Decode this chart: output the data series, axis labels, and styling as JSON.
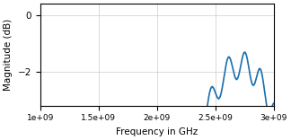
{
  "freq_start": 1000000000.0,
  "freq_end": 3000000000.0,
  "num_points": 500,
  "ylim": [
    -3.2,
    0.4
  ],
  "yticks": [
    0,
    -2
  ],
  "ylabel": "Magnitude (dB)",
  "xlabel": "Frequency in GHz",
  "line_color": "#1a6faf",
  "fill_color": "#6aaed6",
  "fill_alpha": 0.35,
  "background_color": "#ffffff",
  "grid_color": "#cccccc",
  "xticks": [
    1000000000.0,
    1500000000.0,
    2000000000.0,
    2500000000.0,
    3000000000.0
  ],
  "xtick_labels": [
    "1e+09",
    "1.5e+09",
    "2e+09",
    "2.5e+09",
    "3e+09"
  ]
}
